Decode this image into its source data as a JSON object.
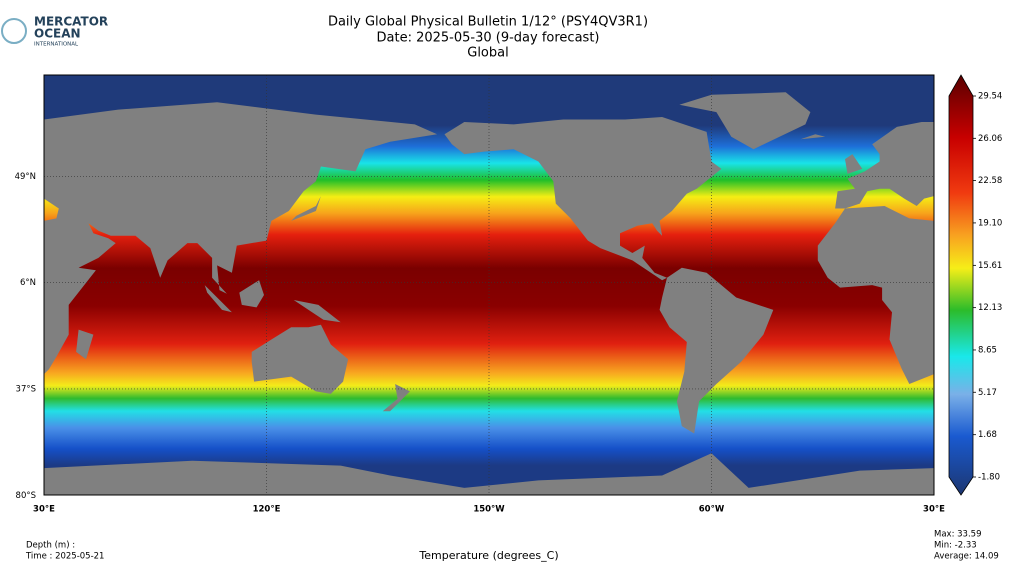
{
  "header": {
    "logo_line1": "MERCATOR",
    "logo_line2": "OCEAN",
    "logo_line3": "INTERNATIONAL",
    "title": "Daily Global Physical Bulletin 1/12° (PSY4QV3R1)",
    "date": "Date: 2025-05-30 (9-day forecast)",
    "region": "Global"
  },
  "map": {
    "lat_ticks": [
      {
        "value": 49,
        "label": "49°N"
      },
      {
        "value": 6,
        "label": "6°N"
      },
      {
        "value": -37,
        "label": "37°S"
      },
      {
        "value": -80,
        "label": "80°S"
      }
    ],
    "lon_ticks": [
      {
        "value": 30,
        "label": "30°E"
      },
      {
        "value": 120,
        "label": "120°E"
      },
      {
        "value": -150,
        "label": "150°W"
      },
      {
        "value": -60,
        "label": "60°W"
      },
      {
        "value": 30,
        "label": "30°E"
      }
    ]
  },
  "colorbar": {
    "lim": [
      -1.8,
      29.54
    ],
    "ticks": [
      {
        "value": 29.54,
        "label": "29.54"
      },
      {
        "value": 26.06,
        "label": "26.06"
      },
      {
        "value": 22.58,
        "label": "22.58"
      },
      {
        "value": 19.1,
        "label": "19.10"
      },
      {
        "value": 15.61,
        "label": "15.61"
      },
      {
        "value": 12.13,
        "label": "12.13"
      },
      {
        "value": 8.65,
        "label": "8.65"
      },
      {
        "value": 5.17,
        "label": "5.17"
      },
      {
        "value": 1.68,
        "label": "1.68"
      },
      {
        "value": -1.8,
        "label": "-1.80"
      }
    ]
  },
  "footer": {
    "depth": "Depth (m) :",
    "time": "Time : 2025-05-21",
    "variable": "Temperature (degrees_C)",
    "stats": [
      "Max: 33.59",
      "Min: -2.33",
      "Average: 14.09"
    ]
  }
}
